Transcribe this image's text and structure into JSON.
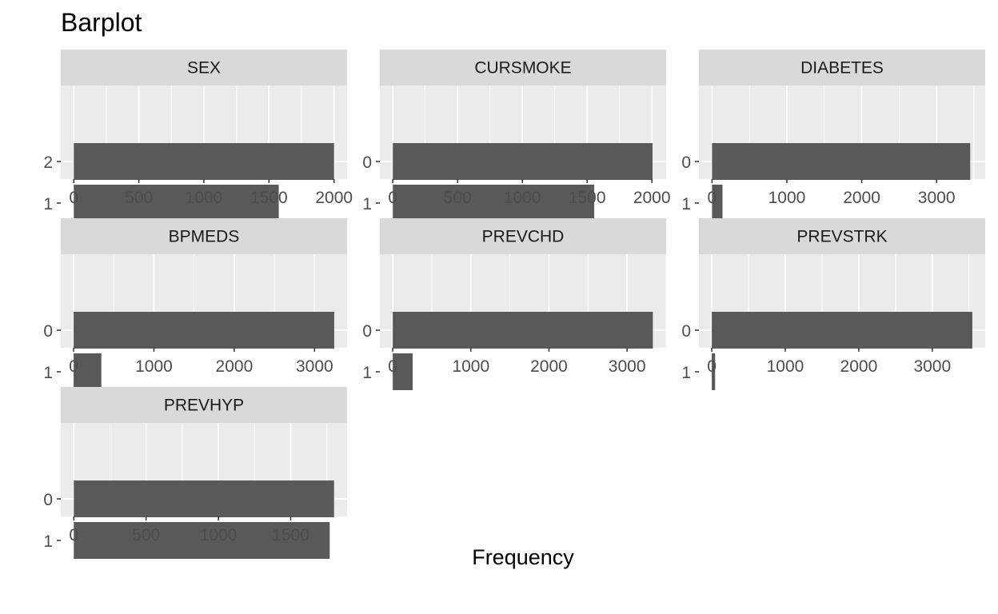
{
  "chart_data": {
    "type": "bar",
    "title": "Barplot",
    "xlabel": "Frequency",
    "ylabel": "",
    "orientation": "horizontal",
    "layout": "facet-grid 3 columns",
    "colors": {
      "bar": "#595959",
      "panel_background": "#ebebeb",
      "strip_background": "#d9d9d9",
      "gridline": "#ffffff"
    },
    "panels": [
      {
        "name": "SEX",
        "categories": [
          "2",
          "1"
        ],
        "values": [
          2000,
          1575
        ],
        "xlim": [
          -100,
          2100
        ],
        "ticks": [
          0,
          500,
          1000,
          1500,
          2000
        ]
      },
      {
        "name": "CURSMOKE",
        "categories": [
          "0",
          "1"
        ],
        "values": [
          2005,
          1555
        ],
        "xlim": [
          -100,
          2110
        ],
        "ticks": [
          0,
          500,
          1000,
          1500,
          2000
        ]
      },
      {
        "name": "DIABETES",
        "categories": [
          "0",
          "1"
        ],
        "values": [
          3450,
          140
        ],
        "xlim": [
          -175,
          3650
        ],
        "ticks": [
          0,
          1000,
          2000,
          3000
        ]
      },
      {
        "name": "BPMEDS",
        "categories": [
          "0",
          "1"
        ],
        "values": [
          3245,
          345
        ],
        "xlim": [
          -160,
          3405
        ],
        "ticks": [
          0,
          1000,
          2000,
          3000
        ]
      },
      {
        "name": "PREVCHD",
        "categories": [
          "0",
          "1"
        ],
        "values": [
          3330,
          255
        ],
        "xlim": [
          -165,
          3500
        ],
        "ticks": [
          0,
          1000,
          2000,
          3000
        ]
      },
      {
        "name": "PREVSTRK",
        "categories": [
          "0",
          "1"
        ],
        "values": [
          3545,
          45
        ],
        "xlim": [
          -175,
          3720
        ],
        "ticks": [
          0,
          1000,
          2000,
          3000
        ]
      },
      {
        "name": "PREVHYP",
        "categories": [
          "0",
          "1"
        ],
        "values": [
          1800,
          1770
        ],
        "xlim": [
          -90,
          1890
        ],
        "ticks": [
          0,
          500,
          1000,
          1500
        ]
      }
    ]
  }
}
